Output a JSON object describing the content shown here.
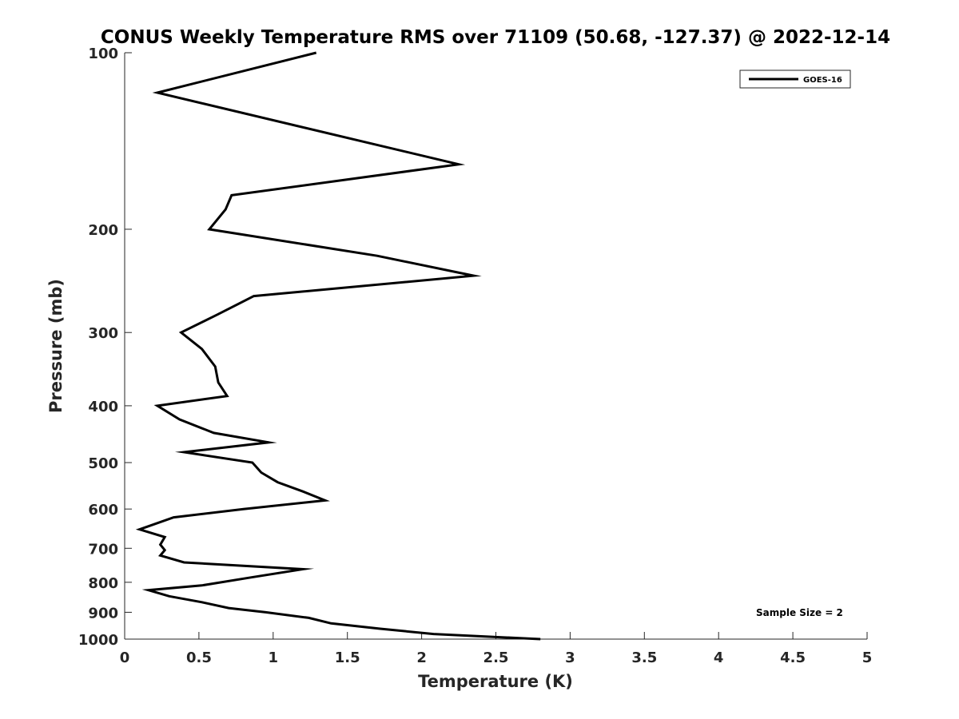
{
  "chart_data": {
    "type": "line",
    "title": "CONUS Weekly Temperature RMS over 71109 (50.68, -127.37) @ 2022-12-14",
    "xlabel": "Temperature (K)",
    "ylabel": "Pressure (mb)",
    "xlim": [
      0,
      5
    ],
    "ylim": [
      1000,
      100
    ],
    "y_scale": "log",
    "y_reversed": true,
    "x_ticks": [
      0,
      0.5,
      1,
      1.5,
      2,
      2.5,
      3,
      3.5,
      4,
      4.5,
      5
    ],
    "x_tick_labels": [
      "0",
      "0.5",
      "1",
      "1.5",
      "2",
      "2.5",
      "3",
      "3.5",
      "4",
      "4.5",
      "5"
    ],
    "y_ticks": [
      100,
      200,
      300,
      400,
      500,
      600,
      700,
      800,
      900,
      1000
    ],
    "y_tick_labels": [
      "100",
      "200",
      "300",
      "400",
      "500",
      "600",
      "700",
      "800",
      "900",
      "1000"
    ],
    "grid": false,
    "legend_position": "top-right",
    "annotation": "Sample Size = 2",
    "series": [
      {
        "name": "GOES-16",
        "color": "#000000",
        "points": [
          [
            1.29,
            100
          ],
          [
            0.22,
            117
          ],
          [
            2.25,
            155
          ],
          [
            0.72,
            175
          ],
          [
            0.68,
            185
          ],
          [
            0.57,
            200
          ],
          [
            1.7,
            222
          ],
          [
            2.35,
            240
          ],
          [
            0.87,
            260
          ],
          [
            0.62,
            280
          ],
          [
            0.38,
            300
          ],
          [
            0.52,
            320
          ],
          [
            0.61,
            343
          ],
          [
            0.63,
            365
          ],
          [
            0.69,
            385
          ],
          [
            0.22,
            400
          ],
          [
            0.37,
            422
          ],
          [
            0.6,
            445
          ],
          [
            0.97,
            462
          ],
          [
            0.4,
            480
          ],
          [
            0.86,
            500
          ],
          [
            0.92,
            520
          ],
          [
            1.03,
            540
          ],
          [
            1.2,
            560
          ],
          [
            1.35,
            580
          ],
          [
            0.8,
            600
          ],
          [
            0.33,
            620
          ],
          [
            0.1,
            650
          ],
          [
            0.27,
            670
          ],
          [
            0.24,
            690
          ],
          [
            0.27,
            705
          ],
          [
            0.24,
            720
          ],
          [
            0.4,
            740
          ],
          [
            1.2,
            760
          ],
          [
            0.85,
            785
          ],
          [
            0.52,
            810
          ],
          [
            0.16,
            825
          ],
          [
            0.3,
            845
          ],
          [
            0.52,
            865
          ],
          [
            0.7,
            885
          ],
          [
            0.95,
            900
          ],
          [
            1.24,
            920
          ],
          [
            1.39,
            940
          ],
          [
            1.72,
            960
          ],
          [
            2.08,
            980
          ],
          [
            2.8,
            1000
          ]
        ]
      }
    ]
  }
}
